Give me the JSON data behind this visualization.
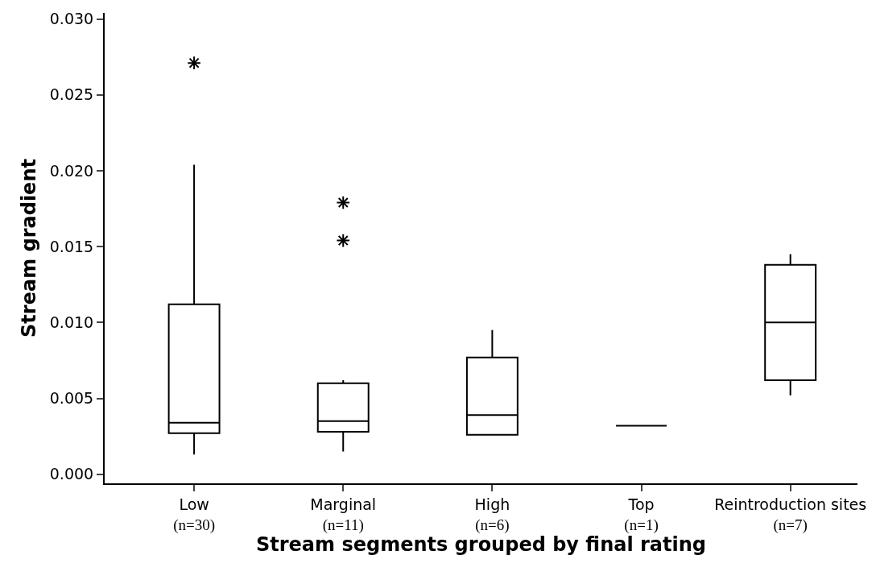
{
  "chart_data": {
    "type": "box",
    "xlabel": "Stream segments grouped by final rating",
    "ylabel": "Stream gradient",
    "categories": [
      "Low\n(n=30)",
      "Marginal\n(n=11)",
      "High\n(n=6)",
      "Top\n(n=1)",
      "Reintroduction sites\n(n=7)"
    ],
    "boxes": [
      {
        "low": 0.0013,
        "q1": 0.0027,
        "median": 0.0034,
        "q3": 0.0112,
        "high": 0.0204,
        "outliers": [
          0.0271
        ]
      },
      {
        "low": 0.0015,
        "q1": 0.0028,
        "median": 0.0035,
        "q3": 0.006,
        "high": 0.0062,
        "outliers": [
          0.0179,
          0.0154
        ]
      },
      {
        "low": 0.0026,
        "q1": 0.0026,
        "median": 0.0039,
        "q3": 0.0077,
        "high": 0.0095
      },
      {
        "low": 0.0032,
        "q1": 0.0032,
        "median": 0.0032,
        "q3": 0.0032,
        "high": 0.0032
      },
      {
        "low": 0.0052,
        "q1": 0.0062,
        "median": 0.01,
        "q3": 0.0138,
        "high": 0.0145
      }
    ],
    "color": "#000000",
    "ylim": [
      -0.0006,
      0.0304
    ],
    "yticks": [
      {
        "value": 0,
        "label": "0.000"
      },
      {
        "value": 0.005,
        "label": "0.005"
      },
      {
        "value": 0.01,
        "label": "0.010"
      },
      {
        "value": 0.015,
        "label": "0.015"
      },
      {
        "value": 0.02,
        "label": "0.020"
      },
      {
        "value": 0.025,
        "label": "0.025"
      },
      {
        "value": 0.03,
        "label": "0.030"
      }
    ]
  }
}
